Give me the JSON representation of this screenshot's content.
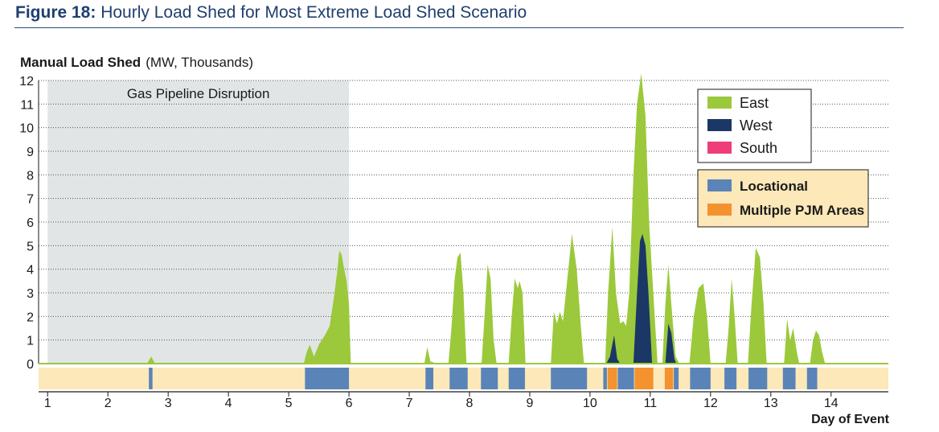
{
  "figure": {
    "number": "Figure 18:",
    "caption": "Hourly Load Shed for Most Extreme Load Shed Scenario"
  },
  "chart_data": {
    "type": "area",
    "ylabel": "Manual Load Shed",
    "ylabel_units": "(MW, Thousands)",
    "xlabel": "Day of Event",
    "ylim": [
      0,
      12
    ],
    "xlim": [
      0.85,
      14.95
    ],
    "y_ticks": [
      0,
      1,
      2,
      3,
      4,
      5,
      6,
      7,
      8,
      9,
      10,
      11,
      12
    ],
    "x_ticks": [
      1,
      2,
      3,
      4,
      5,
      6,
      7,
      8,
      9,
      10,
      11,
      12,
      13,
      14
    ],
    "grid": "horizontal dotted",
    "annotation": {
      "label": "Gas Pipeline Disruption",
      "x_range": [
        1,
        6
      ]
    },
    "legend_position": "top-right",
    "series": [
      {
        "name": "East",
        "color": "#9bc93b",
        "points": [
          [
            2.65,
            0
          ],
          [
            2.72,
            0.3
          ],
          [
            2.78,
            0
          ],
          [
            5.25,
            0
          ],
          [
            5.3,
            0.5
          ],
          [
            5.35,
            0.8
          ],
          [
            5.42,
            0.3
          ],
          [
            5.5,
            0.8
          ],
          [
            5.6,
            1.2
          ],
          [
            5.68,
            1.6
          ],
          [
            5.75,
            2.8
          ],
          [
            5.8,
            3.8
          ],
          [
            5.84,
            4.8
          ],
          [
            5.88,
            4.6
          ],
          [
            5.92,
            4.0
          ],
          [
            5.96,
            3.5
          ],
          [
            6.0,
            2.5
          ],
          [
            6.03,
            0
          ],
          [
            7.25,
            0
          ],
          [
            7.3,
            0.7
          ],
          [
            7.35,
            0.1
          ],
          [
            7.45,
            0
          ],
          [
            7.65,
            0
          ],
          [
            7.7,
            1.5
          ],
          [
            7.75,
            3.5
          ],
          [
            7.8,
            4.5
          ],
          [
            7.85,
            4.7
          ],
          [
            7.9,
            3.0
          ],
          [
            7.95,
            0
          ],
          [
            8.2,
            0
          ],
          [
            8.25,
            2.0
          ],
          [
            8.3,
            4.2
          ],
          [
            8.35,
            3.6
          ],
          [
            8.4,
            1.0
          ],
          [
            8.45,
            0
          ],
          [
            8.65,
            0
          ],
          [
            8.7,
            2.0
          ],
          [
            8.75,
            3.6
          ],
          [
            8.8,
            3.2
          ],
          [
            8.83,
            3.5
          ],
          [
            8.88,
            3.0
          ],
          [
            8.93,
            0
          ],
          [
            9.35,
            0
          ],
          [
            9.4,
            2.2
          ],
          [
            9.45,
            1.7
          ],
          [
            9.5,
            2.2
          ],
          [
            9.55,
            1.8
          ],
          [
            9.6,
            3.0
          ],
          [
            9.7,
            5.5
          ],
          [
            9.78,
            4.0
          ],
          [
            9.85,
            1.5
          ],
          [
            9.9,
            0
          ],
          [
            10.25,
            0
          ],
          [
            10.3,
            3.0
          ],
          [
            10.37,
            5.8
          ],
          [
            10.43,
            3.0
          ],
          [
            10.5,
            1.7
          ],
          [
            10.55,
            1.8
          ],
          [
            10.6,
            1.6
          ],
          [
            10.65,
            3.0
          ],
          [
            10.72,
            8.0
          ],
          [
            10.78,
            11.0
          ],
          [
            10.85,
            12.3
          ],
          [
            10.92,
            10.5
          ],
          [
            10.98,
            6.0
          ],
          [
            11.05,
            3.0
          ],
          [
            11.12,
            0
          ],
          [
            11.2,
            0
          ],
          [
            11.25,
            2.5
          ],
          [
            11.3,
            4.2
          ],
          [
            11.35,
            2.5
          ],
          [
            11.42,
            0.3
          ],
          [
            11.48,
            0
          ],
          [
            11.65,
            0
          ],
          [
            11.72,
            2.0
          ],
          [
            11.8,
            3.2
          ],
          [
            11.88,
            3.4
          ],
          [
            11.94,
            2.0
          ],
          [
            12.0,
            0
          ],
          [
            12.25,
            0
          ],
          [
            12.3,
            1.5
          ],
          [
            12.35,
            3.6
          ],
          [
            12.4,
            2.0
          ],
          [
            12.45,
            0
          ],
          [
            12.62,
            0
          ],
          [
            12.68,
            2.5
          ],
          [
            12.75,
            4.9
          ],
          [
            12.82,
            4.5
          ],
          [
            12.88,
            2.5
          ],
          [
            12.93,
            0
          ],
          [
            13.22,
            0
          ],
          [
            13.27,
            1.9
          ],
          [
            13.32,
            1.0
          ],
          [
            13.37,
            1.5
          ],
          [
            13.43,
            0.5
          ],
          [
            13.47,
            0
          ],
          [
            13.65,
            0
          ],
          [
            13.7,
            1.0
          ],
          [
            13.75,
            1.4
          ],
          [
            13.8,
            1.2
          ],
          [
            13.85,
            0.5
          ],
          [
            13.9,
            0
          ]
        ]
      },
      {
        "name": "West",
        "color": "#1b3766",
        "points": [
          [
            10.27,
            0
          ],
          [
            10.33,
            0.3
          ],
          [
            10.4,
            1.2
          ],
          [
            10.45,
            0.2
          ],
          [
            10.5,
            0
          ],
          [
            10.72,
            0
          ],
          [
            10.78,
            3.0
          ],
          [
            10.83,
            5.2
          ],
          [
            10.87,
            5.5
          ],
          [
            10.92,
            5.0
          ],
          [
            10.97,
            3.0
          ],
          [
            11.03,
            0
          ],
          [
            11.25,
            0
          ],
          [
            11.3,
            1.7
          ],
          [
            11.35,
            1.3
          ],
          [
            11.4,
            0.2
          ],
          [
            11.43,
            0
          ]
        ]
      },
      {
        "name": "South",
        "color": "#ee3d7a",
        "points": []
      }
    ],
    "event_strip": {
      "categories": [
        {
          "name": "Locational",
          "color": "#5a84b8"
        },
        {
          "name": "Multiple PJM Areas",
          "color": "#f4922f"
        }
      ],
      "background": "#fce8b8",
      "segments": [
        {
          "category": "Locational",
          "x0": 2.68,
          "x1": 2.74
        },
        {
          "category": "Locational",
          "x0": 5.27,
          "x1": 6.0
        },
        {
          "category": "Locational",
          "x0": 7.27,
          "x1": 7.4
        },
        {
          "category": "Locational",
          "x0": 7.67,
          "x1": 7.97
        },
        {
          "category": "Locational",
          "x0": 8.19,
          "x1": 8.47
        },
        {
          "category": "Locational",
          "x0": 8.65,
          "x1": 8.92
        },
        {
          "category": "Locational",
          "x0": 9.35,
          "x1": 9.95
        },
        {
          "category": "Locational",
          "x0": 10.22,
          "x1": 10.28
        },
        {
          "category": "Multiple PJM Areas",
          "x0": 10.29,
          "x1": 10.45
        },
        {
          "category": "Locational",
          "x0": 10.46,
          "x1": 10.73
        },
        {
          "category": "Multiple PJM Areas",
          "x0": 10.74,
          "x1": 11.05
        },
        {
          "category": "Multiple PJM Areas",
          "x0": 11.24,
          "x1": 11.38
        },
        {
          "category": "Locational",
          "x0": 11.39,
          "x1": 11.47
        },
        {
          "category": "Locational",
          "x0": 11.66,
          "x1": 12.0
        },
        {
          "category": "Locational",
          "x0": 12.23,
          "x1": 12.43
        },
        {
          "category": "Locational",
          "x0": 12.63,
          "x1": 12.94
        },
        {
          "category": "Locational",
          "x0": 13.2,
          "x1": 13.41
        },
        {
          "category": "Locational",
          "x0": 13.6,
          "x1": 13.77
        }
      ]
    }
  }
}
